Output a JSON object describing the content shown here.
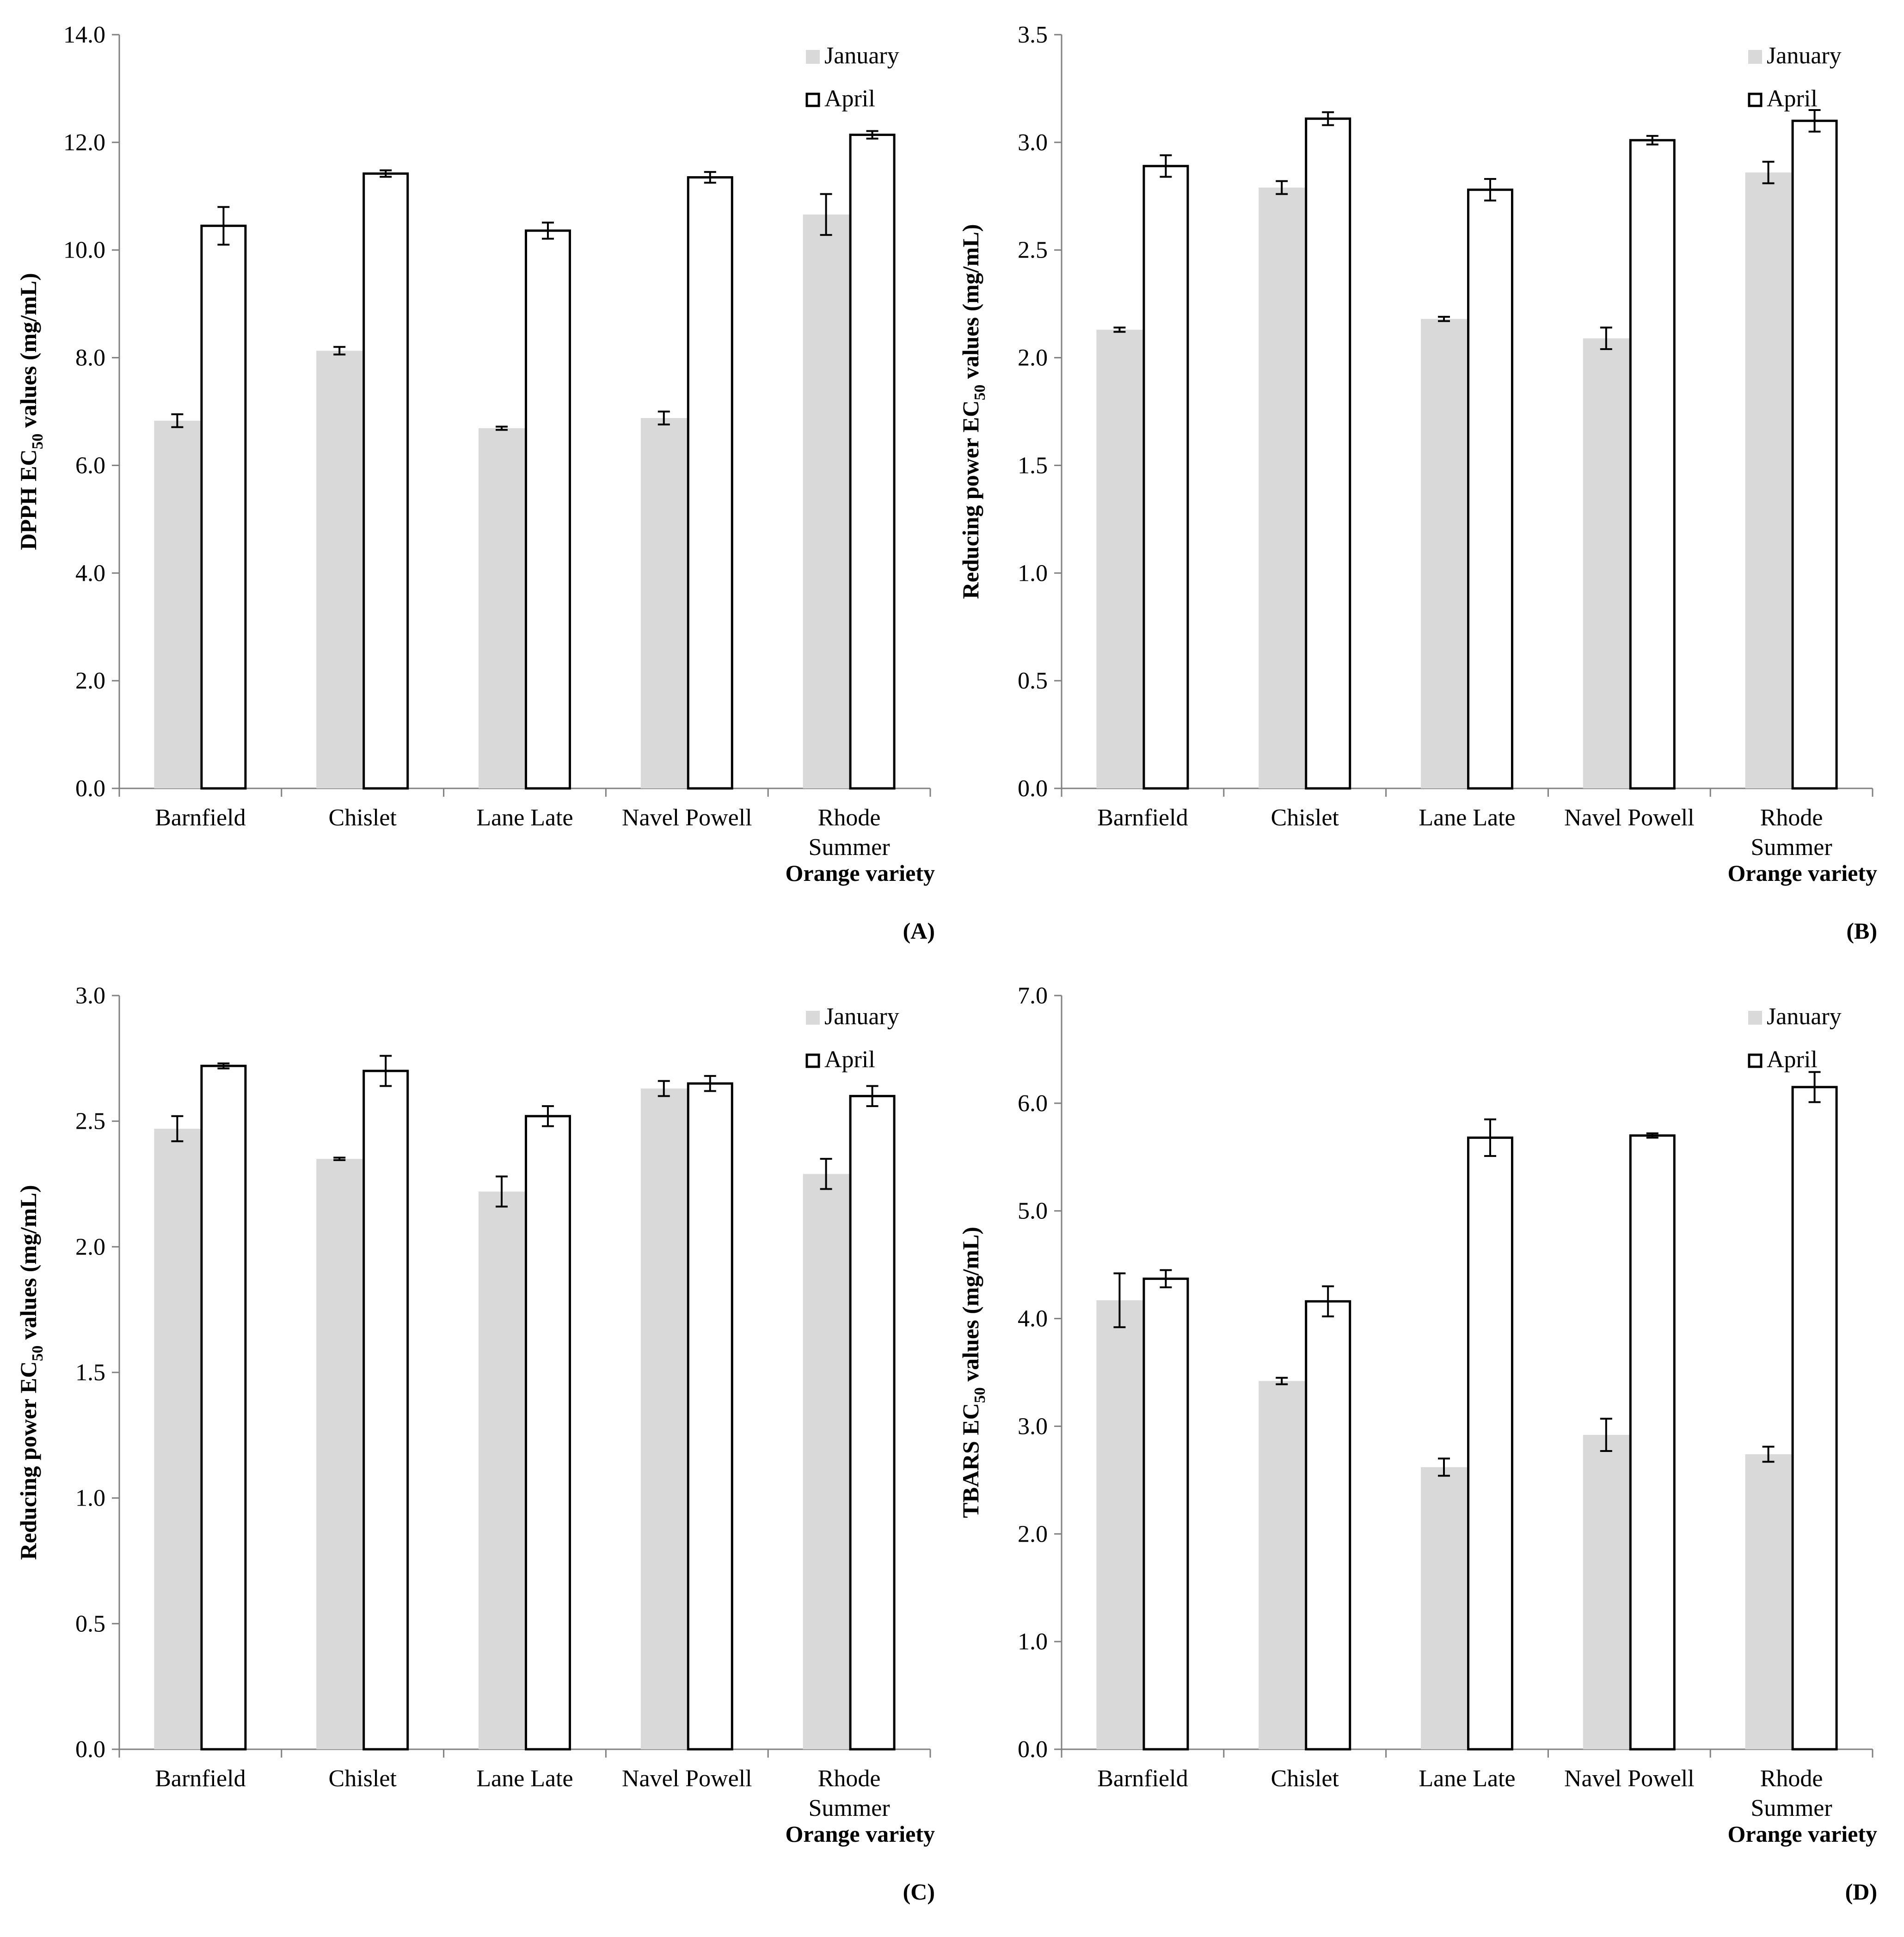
{
  "figure": {
    "series_names": [
      "January",
      "April"
    ],
    "colors": {
      "january_fill": "#d9d9d9",
      "april_fill": "#ffffff",
      "april_stroke": "#000000",
      "axis": "#808080",
      "error_bar": "#000000"
    }
  },
  "chart_data": [
    {
      "panel_label": "(A)",
      "type": "bar",
      "title": "",
      "ylabel": {
        "pre": "DPPH EC",
        "sub": "50",
        "post": " values (mg/mL)"
      },
      "xlabel": "Orange variety",
      "ylim": [
        0,
        14
      ],
      "yticks": [
        "0.0",
        "2.0",
        "4.0",
        "6.0",
        "8.0",
        "10.0",
        "12.0",
        "14.0"
      ],
      "categories": [
        [
          "Barnfield"
        ],
        [
          "Chislet"
        ],
        [
          "Lane Late"
        ],
        [
          "Navel Powell"
        ],
        [
          "Rhode",
          "Summer"
        ]
      ],
      "series": [
        {
          "name": "January",
          "values": [
            6.83,
            8.13,
            6.69,
            6.88,
            10.66
          ],
          "errors": [
            0.12,
            0.07,
            0.03,
            0.12,
            0.38
          ]
        },
        {
          "name": "April",
          "values": [
            10.45,
            11.42,
            10.36,
            11.35,
            12.14
          ],
          "errors": [
            0.35,
            0.06,
            0.15,
            0.1,
            0.07
          ]
        }
      ],
      "legend": [
        "January",
        "April"
      ],
      "legend_position": "top-right"
    },
    {
      "panel_label": "(B)",
      "type": "bar",
      "title": "",
      "ylabel": {
        "pre": "Reducing power EC",
        "sub": "50",
        "post": " values (mg/mL)"
      },
      "xlabel": "Orange variety",
      "ylim": [
        0,
        3.5
      ],
      "yticks": [
        "0.0",
        "0.5",
        "1.0",
        "1.5",
        "2.0",
        "2.5",
        "3.0",
        "3.5"
      ],
      "categories": [
        [
          "Barnfield"
        ],
        [
          "Chislet"
        ],
        [
          "Lane Late"
        ],
        [
          "Navel Powell"
        ],
        [
          "Rhode",
          "Summer"
        ]
      ],
      "series": [
        {
          "name": "January",
          "values": [
            2.13,
            2.79,
            2.18,
            2.09,
            2.86
          ],
          "errors": [
            0.01,
            0.03,
            0.01,
            0.05,
            0.05
          ]
        },
        {
          "name": "April",
          "values": [
            2.89,
            3.11,
            2.78,
            3.01,
            3.1
          ],
          "errors": [
            0.05,
            0.03,
            0.05,
            0.02,
            0.05
          ]
        }
      ],
      "legend": [
        "January",
        "April"
      ],
      "legend_position": "top-right"
    },
    {
      "panel_label": "(C)",
      "type": "bar",
      "title": "",
      "ylabel": {
        "pre": "Reducing power EC",
        "sub": "50",
        "post": " values (mg/mL)"
      },
      "xlabel": "Orange variety",
      "ylim": [
        0,
        3
      ],
      "yticks": [
        "0.0",
        "0.5",
        "1.0",
        "1.5",
        "2.0",
        "2.5",
        "3.0"
      ],
      "categories": [
        [
          "Barnfield"
        ],
        [
          "Chislet"
        ],
        [
          "Lane Late"
        ],
        [
          "Navel Powell"
        ],
        [
          "Rhode",
          "Summer"
        ]
      ],
      "series": [
        {
          "name": "January",
          "values": [
            2.47,
            2.35,
            2.22,
            2.63,
            2.29
          ],
          "errors": [
            0.05,
            0.005,
            0.06,
            0.03,
            0.06
          ]
        },
        {
          "name": "April",
          "values": [
            2.72,
            2.7,
            2.52,
            2.65,
            2.6
          ],
          "errors": [
            0.01,
            0.06,
            0.04,
            0.03,
            0.04
          ]
        }
      ],
      "legend": [
        "January",
        "April"
      ],
      "legend_position": "top-right"
    },
    {
      "panel_label": "(D)",
      "type": "bar",
      "title": "",
      "ylabel": {
        "pre": "TBARS EC",
        "sub": "50",
        "post": " values (mg/mL)"
      },
      "xlabel": "Orange variety",
      "ylim": [
        0,
        7
      ],
      "yticks": [
        "0.0",
        "1.0",
        "2.0",
        "3.0",
        "4.0",
        "5.0",
        "6.0",
        "7.0"
      ],
      "categories": [
        [
          "Barnfield"
        ],
        [
          "Chislet"
        ],
        [
          "Lane Late"
        ],
        [
          "Navel Powell"
        ],
        [
          "Rhode",
          "Summer"
        ]
      ],
      "series": [
        {
          "name": "January",
          "values": [
            4.17,
            3.42,
            2.62,
            2.92,
            2.74
          ],
          "errors": [
            0.25,
            0.03,
            0.08,
            0.15,
            0.07
          ]
        },
        {
          "name": "April",
          "values": [
            4.37,
            4.16,
            5.68,
            5.7,
            6.15
          ],
          "errors": [
            0.08,
            0.14,
            0.17,
            0.02,
            0.14
          ]
        }
      ],
      "legend": [
        "January",
        "April"
      ],
      "legend_position": "top-right"
    }
  ]
}
